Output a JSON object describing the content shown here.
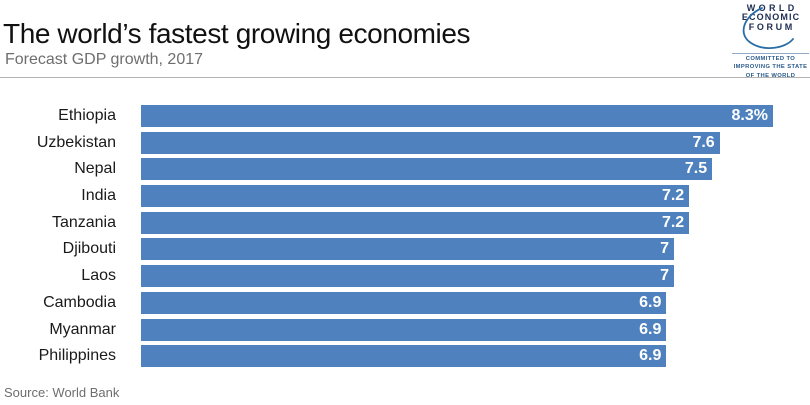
{
  "header": {
    "title": "The world’s fastest growing economies",
    "subtitle": "Forecast GDP growth, 2017"
  },
  "logo": {
    "line1": "WORLD",
    "line2": "ECONOMIC",
    "line3": "FORUM",
    "tagline1": "COMMITTED TO",
    "tagline2": "IMPROVING THE STATE",
    "tagline3": "OF THE WORLD"
  },
  "footer": {
    "source": "Source: World Bank"
  },
  "colors": {
    "bar": "#4e81bd",
    "title_text": "#111111",
    "subtitle_text": "#6e6e6e",
    "logo_navy": "#1e2c52",
    "logo_blue": "#2a6ca5",
    "rule_gray": "#b3b3b3",
    "value_text": "#ffffff"
  },
  "chart_data": {
    "type": "bar",
    "orientation": "horizontal",
    "title": "The world’s fastest growing economies",
    "subtitle": "Forecast GDP growth, 2017",
    "xlabel": "",
    "ylabel": "",
    "unit": "percent (forecast GDP growth)",
    "xlim": [
      0,
      8.3
    ],
    "grid": false,
    "legend": false,
    "value_labels_position": "inside-end",
    "categories": [
      "Ethiopia",
      "Uzbekistan",
      "Nepal",
      "India",
      "Tanzania",
      "Djibouti",
      "Laos",
      "Cambodia",
      "Myanmar",
      "Philippines"
    ],
    "values": [
      8.3,
      7.6,
      7.5,
      7.2,
      7.2,
      7,
      7,
      6.9,
      6.9,
      6.9
    ],
    "value_labels": [
      "8.3%",
      "7.6",
      "7.5",
      "7.2",
      "7.2",
      "7",
      "7",
      "6.9",
      "6.9",
      "6.9"
    ],
    "source": "Source: World Bank"
  }
}
